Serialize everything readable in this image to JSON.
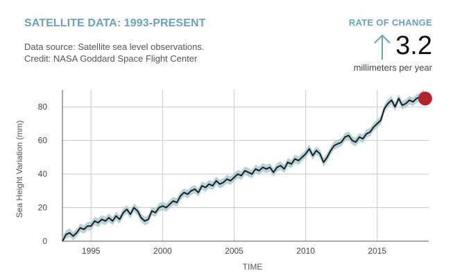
{
  "header": {
    "title": "SATELLITE DATA: 1993-PRESENT",
    "source_line": "Data source: Satellite sea level observations.",
    "credit_line": "Credit: NASA Goddard Space Flight Center"
  },
  "rate": {
    "label": "RATE OF CHANGE",
    "value": "3.2",
    "unit": "millimeters per year",
    "arrow_icon": "up-arrow-icon",
    "arrow_color": "#6aa2b8"
  },
  "colors": {
    "line": "#1a1a1a",
    "band": "#a9cbd6",
    "marker": "#b3242a",
    "grid": "#c8c8c8",
    "axis": "#555555",
    "title": "#6aa2b8"
  },
  "chart_data": {
    "type": "line",
    "xlabel": "TIME",
    "ylabel": "Sea Height Variation (mm)",
    "xlim": [
      1993.0,
      2018.6
    ],
    "ylim": [
      0,
      90
    ],
    "x_ticks": [
      1995,
      2000,
      2005,
      2010,
      2015
    ],
    "y_ticks": [
      0,
      20,
      40,
      60,
      80
    ],
    "grid": true,
    "band_halfwidth_mm": 2.5,
    "series": [
      {
        "x": [
          1993.0,
          1993.25,
          1993.5,
          1993.75,
          1994.0,
          1994.25,
          1994.5,
          1994.75,
          1995.0,
          1995.25,
          1995.5,
          1995.75,
          1996.0,
          1996.25,
          1996.5,
          1996.75,
          1997.0,
          1997.25,
          1997.5,
          1997.75,
          1998.0,
          1998.25,
          1998.5,
          1998.75,
          1999.0,
          1999.25,
          1999.5,
          1999.75,
          2000.0,
          2000.25,
          2000.5,
          2000.75,
          2001.0,
          2001.25,
          2001.5,
          2001.75,
          2002.0,
          2002.25,
          2002.5,
          2002.75,
          2003.0,
          2003.25,
          2003.5,
          2003.75,
          2004.0,
          2004.25,
          2004.5,
          2004.75,
          2005.0,
          2005.25,
          2005.5,
          2005.75,
          2006.0,
          2006.25,
          2006.5,
          2006.75,
          2007.0,
          2007.25,
          2007.5,
          2007.75,
          2008.0,
          2008.25,
          2008.5,
          2008.75,
          2009.0,
          2009.25,
          2009.5,
          2009.75,
          2010.0,
          2010.25,
          2010.5,
          2010.75,
          2011.0,
          2011.25,
          2011.5,
          2011.75,
          2012.0,
          2012.25,
          2012.5,
          2012.75,
          2013.0,
          2013.25,
          2013.5,
          2013.75,
          2014.0,
          2014.25,
          2014.5,
          2014.75,
          2015.0,
          2015.25,
          2015.5,
          2015.75,
          2016.0,
          2016.25,
          2016.5,
          2016.75,
          2017.0,
          2017.25,
          2017.5,
          2017.75,
          2018.0,
          2018.25
        ],
        "y": [
          0,
          4,
          5,
          3,
          5,
          8,
          7,
          9,
          9,
          12,
          11,
          13,
          12,
          14,
          12,
          15,
          13,
          17,
          19,
          16,
          20,
          18,
          14,
          12,
          13,
          18,
          17,
          20,
          21,
          20,
          22,
          24,
          23,
          27,
          29,
          28,
          30,
          31,
          29,
          33,
          32,
          34,
          33,
          36,
          34,
          35,
          37,
          36,
          38,
          40,
          39,
          42,
          41,
          40,
          43,
          42,
          44,
          43,
          44,
          41,
          44,
          45,
          43,
          47,
          46,
          49,
          48,
          50,
          52,
          55,
          51,
          54,
          52,
          47,
          50,
          54,
          57,
          58,
          59,
          62,
          63,
          60,
          59,
          62,
          61,
          64,
          65,
          68,
          70,
          72,
          79,
          82,
          84,
          80,
          85,
          81,
          82,
          84,
          83,
          85,
          86,
          88
        ]
      }
    ],
    "latest_point": {
      "x": 2018.35,
      "y": 85
    }
  }
}
